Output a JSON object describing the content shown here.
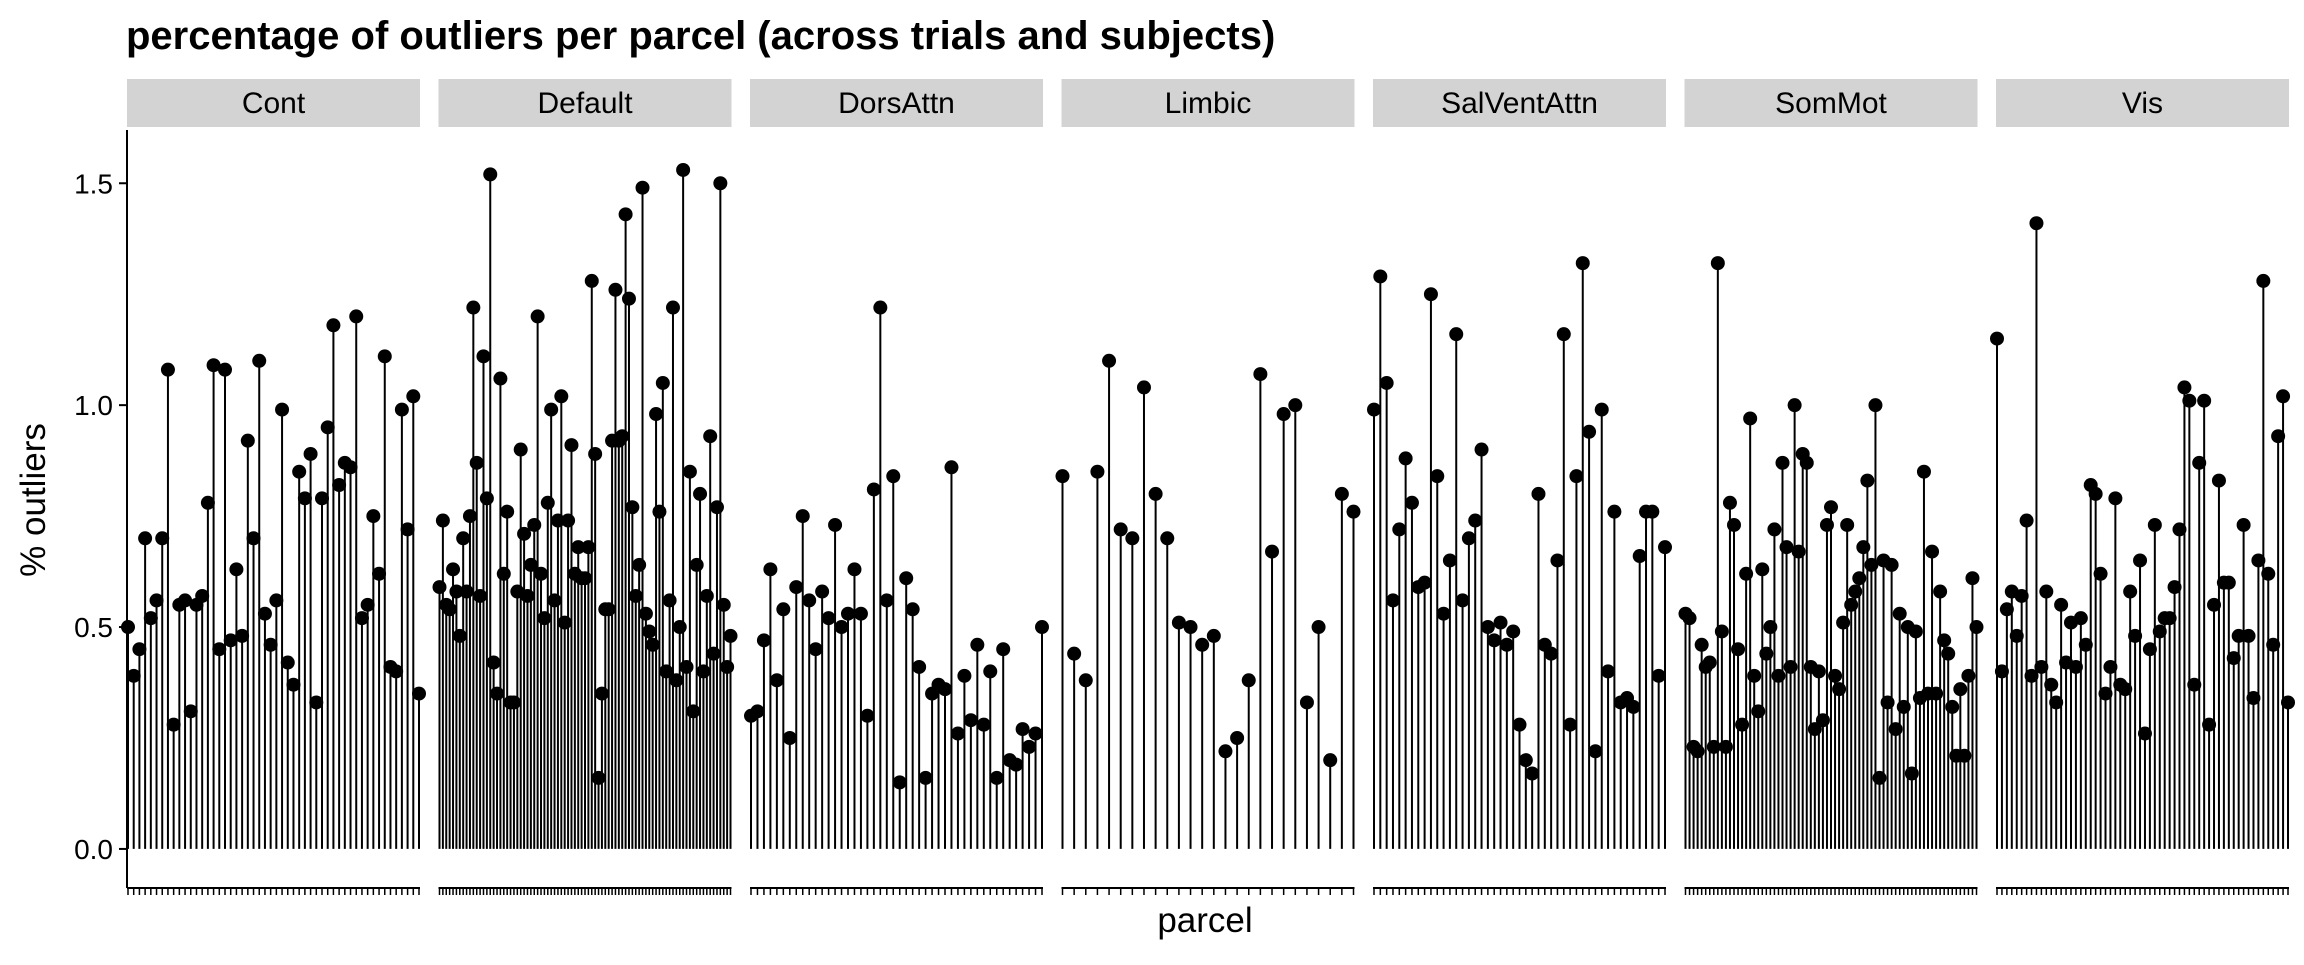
{
  "chart_data": {
    "type": "lollipop",
    "title": "percentage of outliers per parcel (across trials and subjects)",
    "xlabel": "parcel",
    "ylabel": "% outliers",
    "ylim": [
      -0.07,
      1.62
    ],
    "yticks": [
      0.0,
      0.5,
      1.0,
      1.5
    ],
    "ytick_labels": [
      "0.0",
      "0.5",
      "1.0",
      "1.5"
    ],
    "grid": false,
    "facet_strip_fill": "#d3d3d3",
    "mark_color": "#000000",
    "facets": [
      {
        "name": "Cont",
        "values": [
          0.5,
          0.39,
          0.45,
          0.7,
          0.52,
          0.56,
          0.7,
          1.08,
          0.28,
          0.55,
          0.56,
          0.31,
          0.55,
          0.57,
          0.78,
          1.09,
          0.45,
          1.08,
          0.47,
          0.63,
          0.48,
          0.92,
          0.7,
          1.1,
          0.53,
          0.46,
          0.56,
          0.99,
          0.42,
          0.37,
          0.85,
          0.79,
          0.89,
          0.33,
          0.79,
          0.95,
          1.18,
          0.82,
          0.87,
          0.86,
          1.2,
          0.52,
          0.55,
          0.75,
          0.62,
          1.11,
          0.41,
          0.4,
          0.99,
          0.72,
          1.02,
          0.35
        ]
      },
      {
        "name": "Default",
        "values": [
          0.59,
          0.74,
          0.55,
          0.54,
          0.63,
          0.58,
          0.48,
          0.7,
          0.58,
          0.75,
          1.22,
          0.87,
          0.57,
          1.11,
          0.79,
          1.52,
          0.42,
          0.35,
          1.06,
          0.62,
          0.76,
          0.33,
          0.33,
          0.58,
          0.9,
          0.71,
          0.57,
          0.64,
          0.73,
          1.2,
          0.62,
          0.52,
          0.78,
          0.99,
          0.56,
          0.74,
          1.02,
          0.51,
          0.74,
          0.91,
          0.62,
          0.68,
          0.61,
          0.61,
          0.68,
          1.28,
          0.89,
          0.16,
          0.35,
          0.54,
          0.54,
          0.92,
          1.26,
          0.92,
          0.93,
          1.43,
          1.24,
          0.77,
          0.57,
          0.64,
          1.49,
          0.53,
          0.49,
          0.46,
          0.98,
          0.76,
          1.05,
          0.4,
          0.56,
          1.22,
          0.38,
          0.5,
          1.53,
          0.41,
          0.85,
          0.31,
          0.64,
          0.8,
          0.4,
          0.57,
          0.93,
          0.44,
          0.77,
          1.5,
          0.55,
          0.41,
          0.48
        ]
      },
      {
        "name": "DorsAttn",
        "values": [
          0.3,
          0.31,
          0.47,
          0.63,
          0.38,
          0.54,
          0.25,
          0.59,
          0.75,
          0.56,
          0.45,
          0.58,
          0.52,
          0.73,
          0.5,
          0.53,
          0.63,
          0.53,
          0.3,
          0.81,
          1.22,
          0.56,
          0.84,
          0.15,
          0.61,
          0.54,
          0.41,
          0.16,
          0.35,
          0.37,
          0.36,
          0.86,
          0.26,
          0.39,
          0.29,
          0.46,
          0.28,
          0.4,
          0.16,
          0.45,
          0.2,
          0.19,
          0.27,
          0.23,
          0.26,
          0.5
        ]
      },
      {
        "name": "Limbic",
        "values": [
          0.84,
          0.44,
          0.38,
          0.85,
          1.1,
          0.72,
          0.7,
          1.04,
          0.8,
          0.7,
          0.51,
          0.5,
          0.46,
          0.48,
          0.22,
          0.25,
          0.38,
          1.07,
          0.67,
          0.98,
          1.0,
          0.33,
          0.5,
          0.2,
          0.8,
          0.76
        ]
      },
      {
        "name": "SalVentAttn",
        "values": [
          0.99,
          1.29,
          1.05,
          0.56,
          0.72,
          0.88,
          0.78,
          0.59,
          0.6,
          1.25,
          0.84,
          0.53,
          0.65,
          1.16,
          0.56,
          0.7,
          0.74,
          0.9,
          0.5,
          0.47,
          0.51,
          0.46,
          0.49,
          0.28,
          0.2,
          0.17,
          0.8,
          0.46,
          0.44,
          0.65,
          1.16,
          0.28,
          0.84,
          1.32,
          0.94,
          0.22,
          0.99,
          0.4,
          0.76,
          0.33,
          0.34,
          0.32,
          0.66,
          0.76,
          0.76,
          0.39,
          0.68
        ]
      },
      {
        "name": "SomMot",
        "values": [
          0.53,
          0.52,
          0.23,
          0.22,
          0.46,
          0.41,
          0.42,
          0.23,
          1.32,
          0.49,
          0.23,
          0.78,
          0.73,
          0.45,
          0.28,
          0.62,
          0.97,
          0.39,
          0.31,
          0.63,
          0.44,
          0.5,
          0.72,
          0.39,
          0.87,
          0.68,
          0.41,
          1.0,
          0.67,
          0.89,
          0.87,
          0.41,
          0.27,
          0.4,
          0.29,
          0.73,
          0.77,
          0.39,
          0.36,
          0.51,
          0.73,
          0.55,
          0.58,
          0.61,
          0.68,
          0.83,
          0.64,
          1.0,
          0.16,
          0.65,
          0.33,
          0.64,
          0.27,
          0.53,
          0.32,
          0.5,
          0.17,
          0.49,
          0.34,
          0.85,
          0.35,
          0.67,
          0.35,
          0.58,
          0.47,
          0.44,
          0.32,
          0.21,
          0.36,
          0.21,
          0.39,
          0.61,
          0.5
        ]
      },
      {
        "name": "Vis",
        "values": [
          1.15,
          0.4,
          0.54,
          0.58,
          0.48,
          0.57,
          0.74,
          0.39,
          1.41,
          0.41,
          0.58,
          0.37,
          0.33,
          0.55,
          0.42,
          0.51,
          0.41,
          0.52,
          0.46,
          0.82,
          0.8,
          0.62,
          0.35,
          0.41,
          0.79,
          0.37,
          0.36,
          0.58,
          0.48,
          0.65,
          0.26,
          0.45,
          0.73,
          0.49,
          0.52,
          0.52,
          0.59,
          0.72,
          1.04,
          1.01,
          0.37,
          0.87,
          1.01,
          0.28,
          0.55,
          0.83,
          0.6,
          0.6,
          0.43,
          0.48,
          0.73,
          0.48,
          0.34,
          0.65,
          1.28,
          0.62,
          0.46,
          0.93,
          1.02,
          0.33
        ]
      }
    ]
  }
}
